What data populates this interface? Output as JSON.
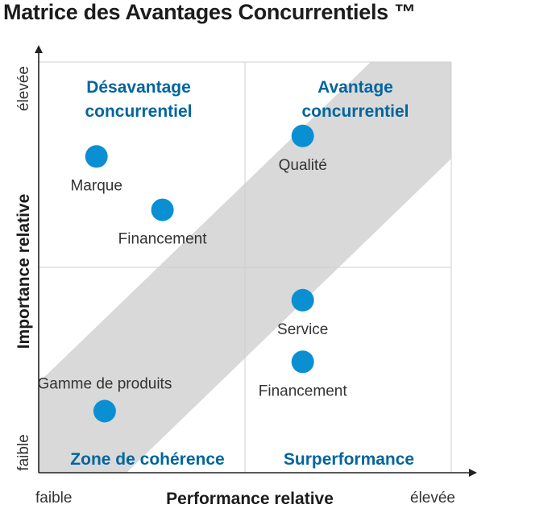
{
  "title": "Matrice des Avantages Concurrentiels ™",
  "colors": {
    "accent": "#00659e",
    "dot": "#0a90d2",
    "band": "#d9d9d9",
    "grid": "#cfcfcf",
    "axis": "#222222",
    "text": "#333333"
  },
  "axes": {
    "x_label": "Performance relative",
    "x_low": "faible",
    "x_high": "élevée",
    "y_label": "Importance relative",
    "y_low": "faible",
    "y_high": "élevée"
  },
  "quadrants": {
    "top_left": [
      "Désavantage",
      "concurrentiel"
    ],
    "top_right": [
      "Avantage",
      "concurrentiel"
    ],
    "bottom_left": "Zone de cohérence",
    "bottom_right": "Surperformance"
  },
  "points": [
    {
      "label": "Marque",
      "performance": 0.14,
      "importance": 0.77,
      "label_position": "below"
    },
    {
      "label": "Financement",
      "performance": 0.3,
      "importance": 0.64,
      "label_position": "below"
    },
    {
      "label": "Qualité",
      "performance": 0.64,
      "importance": 0.82,
      "label_position": "below"
    },
    {
      "label": "Service",
      "performance": 0.64,
      "importance": 0.42,
      "label_position": "below"
    },
    {
      "label": "Financement",
      "performance": 0.64,
      "importance": 0.27,
      "label_position": "below"
    },
    {
      "label": "Gamme de produits",
      "performance": 0.16,
      "importance": 0.15,
      "label_position": "above"
    }
  ]
}
